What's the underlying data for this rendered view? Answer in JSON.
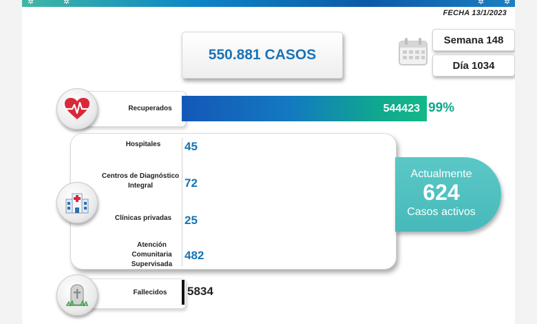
{
  "header": {
    "fecha": "FECHA 13/1/2023"
  },
  "summary": {
    "total_cases": "550.881 CASOS",
    "semana": "Semana 148",
    "dia": "Día 1034"
  },
  "recuperados": {
    "label": "Recuperados",
    "value": "544423",
    "percent": "99%",
    "fill_fraction": 0.99
  },
  "activos_breakdown": [
    {
      "label": "Hospitales",
      "value": "45"
    },
    {
      "label": "Centros de Diagnóstico Integral",
      "value": "72"
    },
    {
      "label": "Clínicas privadas",
      "value": "25"
    },
    {
      "label": "Atención Comunitaria Supervisada",
      "value": "482"
    }
  ],
  "activos": {
    "title": "Actualmente",
    "value": "624",
    "subtitle": "Casos activos"
  },
  "fallecidos": {
    "label": "Fallecidos",
    "value": "5834"
  },
  "icons": {
    "recuperados": "heart-pulse-icon",
    "hospital": "hospital-building-icon",
    "fallecidos": "tombstone-icon",
    "calendar": "calendar-icon"
  },
  "colors": {
    "primary_blue": "#1a73b8",
    "recovered_green": "#0fa68c",
    "active_teal": "#4fbfbf",
    "heart_red": "#d8283a"
  }
}
